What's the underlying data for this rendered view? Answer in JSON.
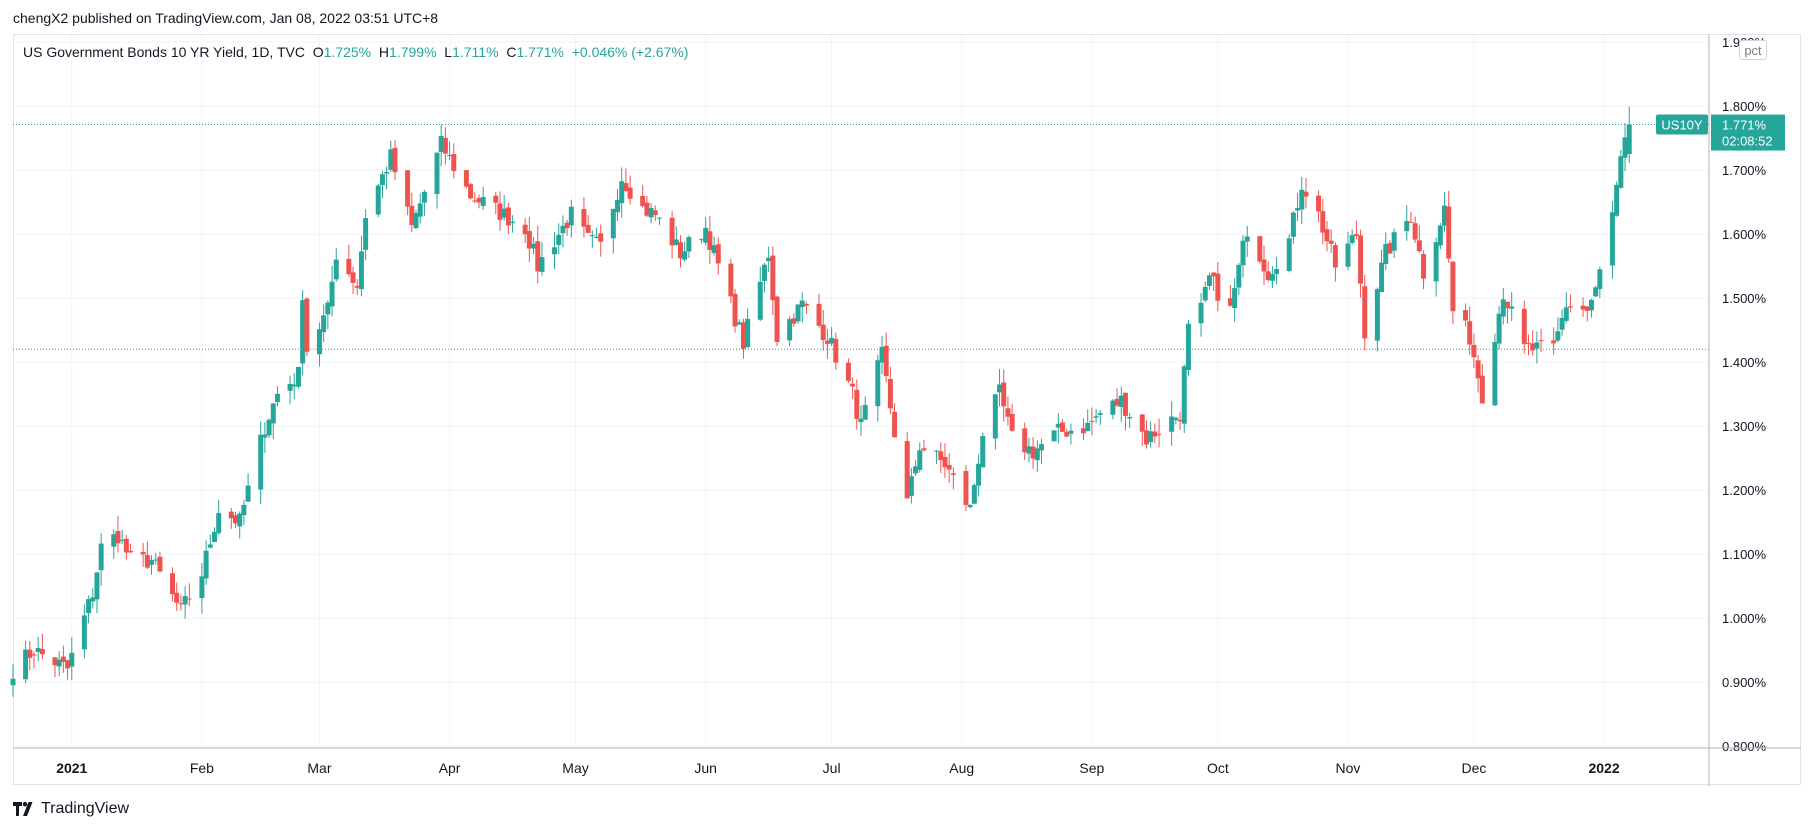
{
  "header": {
    "publish_text": "chengX2 published on TradingView.com, Jan 08, 2022 03:51 UTC+8"
  },
  "legend": {
    "symbol_text": "US Government Bonds 10 YR Yield, 1D, TVC",
    "o_label": "O",
    "o_value": "1.725%",
    "h_label": "H",
    "h_value": "1.799%",
    "l_label": "L",
    "l_value": "1.711%",
    "c_label": "C",
    "c_value": "1.771%",
    "change": "+0.046% (+2.67%)"
  },
  "price_scale": {
    "unit_button": "pct",
    "ticks": [
      "1.900%",
      "1.800%",
      "1.700%",
      "1.600%",
      "1.500%",
      "1.400%",
      "1.300%",
      "1.200%",
      "1.100%",
      "1.000%",
      "0.900%",
      "0.800%"
    ]
  },
  "last_price_label": {
    "symbol": "US10Y",
    "price": "1.771%",
    "countdown": "02:08:52"
  },
  "time_axis": {
    "labels": [
      "2021",
      "Feb",
      "Mar",
      "Apr",
      "May",
      "Jun",
      "Jul",
      "Aug",
      "Sep",
      "Oct",
      "Nov",
      "Dec",
      "2022"
    ]
  },
  "footer": {
    "brand": "TradingView"
  },
  "colors": {
    "up": "#26a69a",
    "down": "#ef5350",
    "grid": "#f0f3fa",
    "axis_text": "#131722"
  },
  "chart_data": {
    "type": "candlestick",
    "title": "US Government Bonds 10 YR Yield, 1D, TVC",
    "unit": "%",
    "ylim": [
      0.8,
      1.9
    ],
    "x_range": [
      "2020-12-18",
      "2022-01-26"
    ],
    "x_ticks": [
      {
        "date": "2021-01-01",
        "label": "2021"
      },
      {
        "date": "2021-02-01",
        "label": "Feb"
      },
      {
        "date": "2021-03-01",
        "label": "Mar"
      },
      {
        "date": "2021-04-01",
        "label": "Apr"
      },
      {
        "date": "2021-05-01",
        "label": "May"
      },
      {
        "date": "2021-06-01",
        "label": "Jun"
      },
      {
        "date": "2021-07-01",
        "label": "Jul"
      },
      {
        "date": "2021-08-01",
        "label": "Aug"
      },
      {
        "date": "2021-09-01",
        "label": "Sep"
      },
      {
        "date": "2021-10-01",
        "label": "Oct"
      },
      {
        "date": "2021-11-01",
        "label": "Nov"
      },
      {
        "date": "2021-12-01",
        "label": "Dec"
      },
      {
        "date": "2022-01-01",
        "label": "2022"
      }
    ],
    "close_anchors": [
      [
        "2020-12-18",
        0.92
      ],
      [
        "2020-12-23",
        0.95
      ],
      [
        "2020-12-31",
        0.92
      ],
      [
        "2021-01-06",
        1.04
      ],
      [
        "2021-01-08",
        1.11
      ],
      [
        "2021-01-12",
        1.13
      ],
      [
        "2021-01-15",
        1.09
      ],
      [
        "2021-01-20",
        1.09
      ],
      [
        "2021-01-27",
        1.01
      ],
      [
        "2021-02-01",
        1.07
      ],
      [
        "2021-02-05",
        1.17
      ],
      [
        "2021-02-10",
        1.15
      ],
      [
        "2021-02-16",
        1.3
      ],
      [
        "2021-02-19",
        1.35
      ],
      [
        "2021-02-24",
        1.38
      ],
      [
        "2021-02-25",
        1.51
      ],
      [
        "2021-02-26",
        1.42
      ],
      [
        "2021-03-03",
        1.48
      ],
      [
        "2021-03-05",
        1.57
      ],
      [
        "2021-03-10",
        1.52
      ],
      [
        "2021-03-12",
        1.63
      ],
      [
        "2021-03-18",
        1.72
      ],
      [
        "2021-03-23",
        1.61
      ],
      [
        "2021-03-30",
        1.74
      ],
      [
        "2021-04-06",
        1.66
      ],
      [
        "2021-04-14",
        1.63
      ],
      [
        "2021-04-19",
        1.61
      ],
      [
        "2021-04-22",
        1.55
      ],
      [
        "2021-04-30",
        1.63
      ],
      [
        "2021-05-04",
        1.59
      ],
      [
        "2021-05-07",
        1.58
      ],
      [
        "2021-05-12",
        1.69
      ],
      [
        "2021-05-17",
        1.64
      ],
      [
        "2021-05-20",
        1.63
      ],
      [
        "2021-05-26",
        1.57
      ],
      [
        "2021-06-01",
        1.61
      ],
      [
        "2021-06-04",
        1.55
      ],
      [
        "2021-06-10",
        1.43
      ],
      [
        "2021-06-16",
        1.57
      ],
      [
        "2021-06-18",
        1.44
      ],
      [
        "2021-06-24",
        1.49
      ],
      [
        "2021-06-30",
        1.44
      ],
      [
        "2021-07-06",
        1.35
      ],
      [
        "2021-07-08",
        1.3
      ],
      [
        "2021-07-13",
        1.41
      ],
      [
        "2021-07-16",
        1.29
      ],
      [
        "2021-07-19",
        1.18
      ],
      [
        "2021-07-22",
        1.27
      ],
      [
        "2021-07-28",
        1.24
      ],
      [
        "2021-08-03",
        1.17
      ],
      [
        "2021-08-06",
        1.29
      ],
      [
        "2021-08-10",
        1.35
      ],
      [
        "2021-08-13",
        1.28
      ],
      [
        "2021-08-18",
        1.26
      ],
      [
        "2021-08-24",
        1.29
      ],
      [
        "2021-08-31",
        1.3
      ],
      [
        "2021-09-03",
        1.32
      ],
      [
        "2021-09-08",
        1.34
      ],
      [
        "2021-09-14",
        1.28
      ],
      [
        "2021-09-22",
        1.32
      ],
      [
        "2021-09-24",
        1.45
      ],
      [
        "2021-09-27",
        1.48
      ],
      [
        "2021-09-29",
        1.53
      ],
      [
        "2021-10-04",
        1.48
      ],
      [
        "2021-10-08",
        1.61
      ],
      [
        "2021-10-13",
        1.54
      ],
      [
        "2021-10-18",
        1.59
      ],
      [
        "2021-10-21",
        1.68
      ],
      [
        "2021-10-25",
        1.63
      ],
      [
        "2021-10-29",
        1.55
      ],
      [
        "2021-11-03",
        1.6
      ],
      [
        "2021-11-05",
        1.45
      ],
      [
        "2021-11-10",
        1.57
      ],
      [
        "2021-11-16",
        1.63
      ],
      [
        "2021-11-19",
        1.54
      ],
      [
        "2021-11-24",
        1.64
      ],
      [
        "2021-11-26",
        1.48
      ],
      [
        "2021-11-30",
        1.44
      ],
      [
        "2021-12-03",
        1.35
      ],
      [
        "2021-12-08",
        1.51
      ],
      [
        "2021-12-13",
        1.42
      ],
      [
        "2021-12-16",
        1.42
      ],
      [
        "2021-12-20",
        1.42
      ],
      [
        "2021-12-23",
        1.49
      ],
      [
        "2021-12-28",
        1.48
      ],
      [
        "2021-12-30",
        1.51
      ],
      [
        "2022-01-03",
        1.63
      ],
      [
        "2022-01-05",
        1.71
      ],
      [
        "2022-01-07",
        1.771
      ]
    ],
    "last_bar": {
      "date": "2022-01-07",
      "open": 1.725,
      "high": 1.799,
      "low": 1.711,
      "close": 1.771
    },
    "reference_lines": [
      1.771,
      1.42
    ]
  }
}
